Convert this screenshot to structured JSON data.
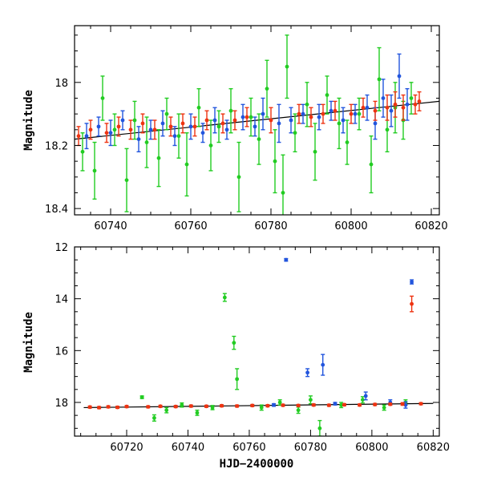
{
  "chart_data": [
    {
      "type": "scatter",
      "panel": "top",
      "xlim": [
        60731,
        60822
      ],
      "ylim": [
        18.42,
        17.82
      ],
      "y_inverted": true,
      "xlabel": "",
      "ylabel": "Magnitude",
      "x_ticks": [
        60740,
        60760,
        60780,
        60800,
        60820
      ],
      "y_ticks": [
        18,
        18.2,
        18.4
      ],
      "grid": false,
      "model_line": {
        "x": [
          60731,
          60822
        ],
        "y": [
          18.18,
          18.06
        ]
      },
      "series_colors": [
        "#22cc22",
        "#2255dd",
        "#ee3311"
      ],
      "series": [
        {
          "x": [
            60733,
            60736,
            60738,
            60741,
            60744,
            60746,
            60749,
            60752,
            60754,
            60757,
            60759,
            60762,
            60765,
            60767,
            60770,
            60772,
            60775,
            60777,
            60779,
            60781,
            60783,
            60784,
            60786,
            60789,
            60791,
            60794,
            60797,
            60799,
            60802,
            60805,
            60807,
            60809,
            60811,
            60813,
            60815
          ],
          "y": [
            18.22,
            18.28,
            18.05,
            18.15,
            18.31,
            18.12,
            18.19,
            18.24,
            18.1,
            18.17,
            18.26,
            18.08,
            18.2,
            18.14,
            18.09,
            18.3,
            18.11,
            18.18,
            18.02,
            18.25,
            18.35,
            17.95,
            18.16,
            18.07,
            18.22,
            18.04,
            18.13,
            18.19,
            18.1,
            18.26,
            17.99,
            18.15,
            18.08,
            18.12,
            18.05
          ],
          "err": [
            0.06,
            0.09,
            0.07,
            0.05,
            0.1,
            0.06,
            0.08,
            0.09,
            0.05,
            0.07,
            0.1,
            0.06,
            0.08,
            0.05,
            0.07,
            0.11,
            0.06,
            0.08,
            0.09,
            0.1,
            0.12,
            0.1,
            0.06,
            0.07,
            0.09,
            0.06,
            0.08,
            0.07,
            0.05,
            0.09,
            0.1,
            0.07,
            0.08,
            0.06,
            0.05
          ]
        },
        {
          "x": [
            60734,
            60737,
            60740,
            60743,
            60747,
            60750,
            60753,
            60756,
            60760,
            60763,
            60766,
            60769,
            60773,
            60776,
            60778,
            60782,
            60785,
            60788,
            60792,
            60795,
            60798,
            60801,
            60804,
            60806,
            60808,
            60810,
            60812,
            60814
          ],
          "y": [
            18.17,
            18.14,
            18.16,
            18.12,
            18.18,
            18.15,
            18.13,
            18.17,
            18.14,
            18.16,
            18.12,
            18.15,
            18.11,
            18.14,
            18.1,
            18.13,
            18.12,
            18.1,
            18.11,
            18.09,
            18.12,
            18.1,
            18.08,
            18.13,
            18.05,
            18.09,
            17.98,
            18.07
          ],
          "err": [
            0.04,
            0.03,
            0.04,
            0.03,
            0.04,
            0.03,
            0.04,
            0.03,
            0.04,
            0.03,
            0.04,
            0.03,
            0.04,
            0.03,
            0.05,
            0.06,
            0.04,
            0.03,
            0.04,
            0.03,
            0.04,
            0.03,
            0.04,
            0.05,
            0.06,
            0.05,
            0.07,
            0.05
          ]
        },
        {
          "x": [
            60732,
            60735,
            60739,
            60742,
            60745,
            60748,
            60751,
            60755,
            60758,
            60761,
            60764,
            60768,
            60771,
            60774,
            60780,
            60787,
            60790,
            60793,
            60796,
            60800,
            60803,
            60806,
            60809,
            60811,
            60813,
            60816,
            60817
          ],
          "y": [
            18.17,
            18.15,
            18.16,
            18.14,
            18.15,
            18.13,
            18.15,
            18.14,
            18.13,
            18.14,
            18.12,
            18.13,
            18.12,
            18.11,
            18.12,
            18.1,
            18.11,
            18.1,
            18.09,
            18.1,
            18.08,
            18.09,
            18.08,
            18.07,
            18.08,
            18.07,
            18.06
          ],
          "err": [
            0.03,
            0.03,
            0.03,
            0.03,
            0.03,
            0.03,
            0.03,
            0.03,
            0.03,
            0.03,
            0.03,
            0.03,
            0.03,
            0.03,
            0.04,
            0.03,
            0.03,
            0.03,
            0.03,
            0.03,
            0.03,
            0.03,
            0.04,
            0.04,
            0.04,
            0.03,
            0.03
          ]
        }
      ]
    },
    {
      "type": "scatter",
      "panel": "bottom",
      "xlim": [
        60703,
        60822
      ],
      "ylim": [
        19.3,
        12.0
      ],
      "y_inverted": true,
      "xlabel": "HJD−2400000",
      "ylabel": "Magnitude",
      "x_ticks": [
        60720,
        60740,
        60760,
        60780,
        60800,
        60820
      ],
      "y_ticks": [
        12,
        14,
        16,
        18
      ],
      "grid": false,
      "model_line": {
        "x": [
          60706,
          60820
        ],
        "y": [
          18.2,
          18.04
        ]
      },
      "series_colors": [
        "#22cc22",
        "#2255dd",
        "#ee3311"
      ],
      "series": [
        {
          "x": [
            60725,
            60729,
            60733,
            60738,
            60743,
            60748,
            60752,
            60755,
            60756,
            60764,
            60770,
            60776,
            60780,
            60783,
            60790,
            60797,
            60804,
            60811
          ],
          "y": [
            17.8,
            18.6,
            18.3,
            18.1,
            18.4,
            18.2,
            13.95,
            15.7,
            17.1,
            18.2,
            18.0,
            18.3,
            17.9,
            19.0,
            18.1,
            17.9,
            18.2,
            18.0
          ],
          "err": [
            0.05,
            0.12,
            0.1,
            0.08,
            0.1,
            0.08,
            0.15,
            0.25,
            0.4,
            0.1,
            0.1,
            0.12,
            0.15,
            0.3,
            0.1,
            0.12,
            0.1,
            0.1
          ]
        },
        {
          "x": [
            60772,
            60779,
            60784,
            60798,
            60806,
            60811,
            60813,
            60768,
            60788
          ],
          "y": [
            12.5,
            16.85,
            16.55,
            17.75,
            18.0,
            18.1,
            13.35,
            18.1,
            18.05
          ],
          "err": [
            0.05,
            0.15,
            0.4,
            0.15,
            0.1,
            0.12,
            0.08,
            0.05,
            0.05
          ]
        },
        {
          "x": [
            60708,
            60711,
            60714,
            60717,
            60720,
            60727,
            60731,
            60736,
            60741,
            60746,
            60751,
            60756,
            60761,
            60766,
            60771,
            60776,
            60781,
            60786,
            60791,
            60796,
            60801,
            60806,
            60810,
            60813,
            60816
          ],
          "y": [
            18.18,
            18.2,
            18.17,
            18.19,
            18.16,
            18.17,
            18.15,
            18.16,
            18.14,
            18.15,
            18.13,
            18.14,
            18.12,
            18.13,
            18.11,
            18.12,
            18.1,
            18.11,
            18.09,
            18.1,
            18.08,
            18.07,
            18.06,
            14.2,
            18.05
          ],
          "err": [
            0.04,
            0.04,
            0.04,
            0.04,
            0.04,
            0.04,
            0.04,
            0.04,
            0.04,
            0.04,
            0.04,
            0.04,
            0.04,
            0.04,
            0.04,
            0.04,
            0.04,
            0.04,
            0.04,
            0.04,
            0.04,
            0.04,
            0.05,
            0.3,
            0.04
          ]
        }
      ]
    }
  ]
}
